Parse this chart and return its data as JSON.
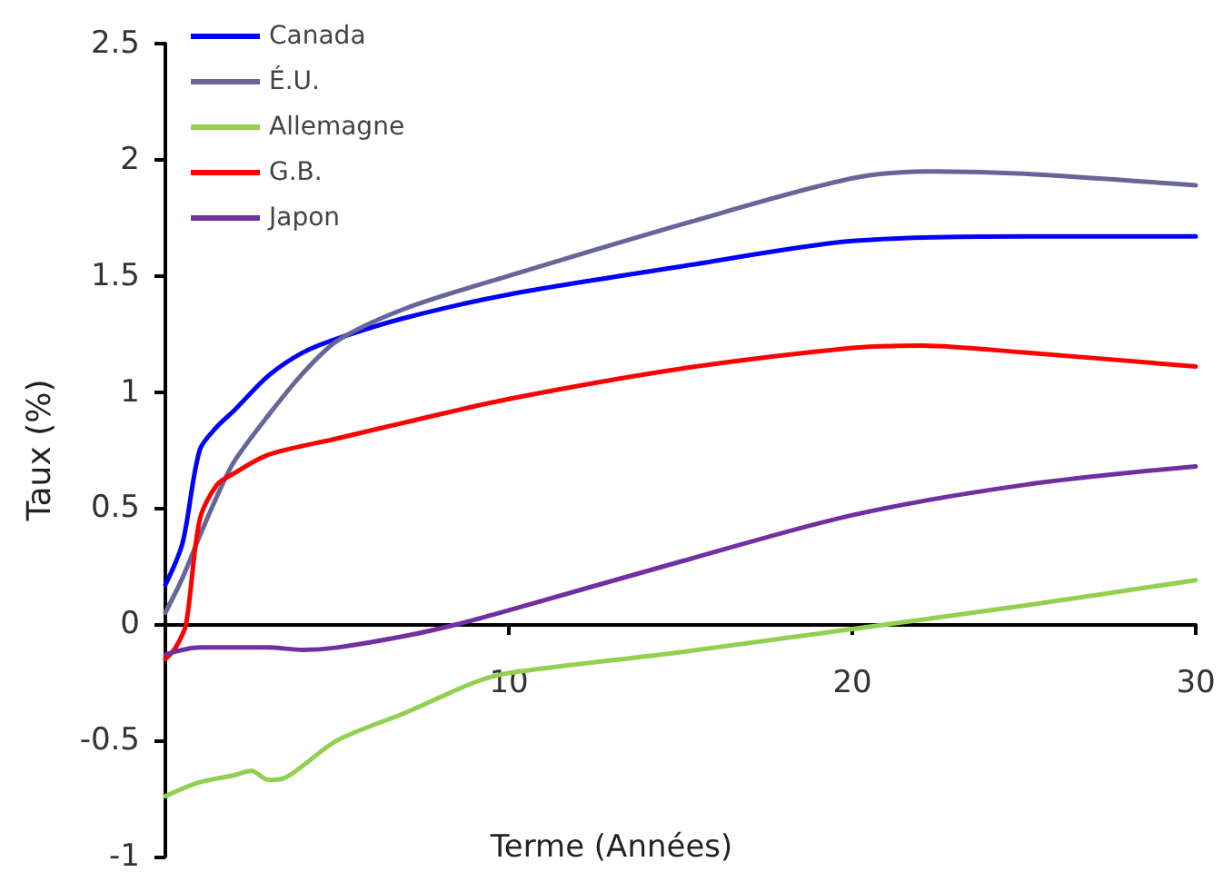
{
  "chart_data": {
    "type": "line",
    "xlabel": "Terme (Années)",
    "ylabel": "Taux (%)",
    "xlim": [
      0,
      30
    ],
    "xticks": [
      10,
      20,
      30
    ],
    "ylim": [
      -1,
      2.5
    ],
    "yticks": [
      -1,
      -0.5,
      0,
      0.5,
      1,
      1.5,
      2,
      2.5
    ],
    "grid": false,
    "legend": "top left",
    "marker": "none",
    "line_style": "solid",
    "series": [
      {
        "name": "Canada",
        "color": "#0000ff",
        "x": [
          0,
          0.5,
          1,
          1.5,
          2,
          3,
          4,
          5,
          7,
          10,
          15,
          20,
          25,
          30
        ],
        "values": [
          0.17,
          0.35,
          0.75,
          0.85,
          0.92,
          1.07,
          1.17,
          1.23,
          1.32,
          1.42,
          1.54,
          1.65,
          1.67,
          1.67
        ]
      },
      {
        "name": "É.U.",
        "color": "#666699",
        "x": [
          0,
          0.5,
          1,
          1.5,
          2,
          3,
          4,
          5,
          7,
          10,
          15,
          20,
          22.5,
          25,
          30
        ],
        "values": [
          0.05,
          0.2,
          0.38,
          0.55,
          0.7,
          0.9,
          1.08,
          1.22,
          1.36,
          1.5,
          1.72,
          1.92,
          1.95,
          1.94,
          1.89
        ]
      },
      {
        "name": "Allemagne",
        "color": "#92d050",
        "x": [
          0,
          1,
          2,
          2.5,
          3,
          3.5,
          5,
          7,
          9,
          10,
          15,
          20,
          25,
          30
        ],
        "values": [
          -0.74,
          -0.68,
          -0.65,
          -0.63,
          -0.67,
          -0.66,
          -0.5,
          -0.38,
          -0.25,
          -0.21,
          -0.12,
          -0.02,
          0.08,
          0.19
        ]
      },
      {
        "name": "G.B.",
        "color": "#ff0000",
        "x": [
          0,
          0.3,
          0.6,
          1,
          1.5,
          2,
          3,
          5,
          7,
          10,
          15,
          20,
          22,
          25,
          30
        ],
        "values": [
          -0.15,
          -0.1,
          0.0,
          0.45,
          0.6,
          0.65,
          0.73,
          0.8,
          0.87,
          0.97,
          1.1,
          1.19,
          1.2,
          1.17,
          1.11
        ]
      },
      {
        "name": "Japon",
        "color": "#7030a0",
        "x": [
          0,
          1,
          3,
          4,
          5,
          7,
          8.5,
          10,
          15,
          20,
          25,
          30
        ],
        "values": [
          -0.13,
          -0.1,
          -0.1,
          -0.11,
          -0.1,
          -0.05,
          0,
          0.06,
          0.27,
          0.47,
          0.6,
          0.68
        ]
      }
    ]
  }
}
